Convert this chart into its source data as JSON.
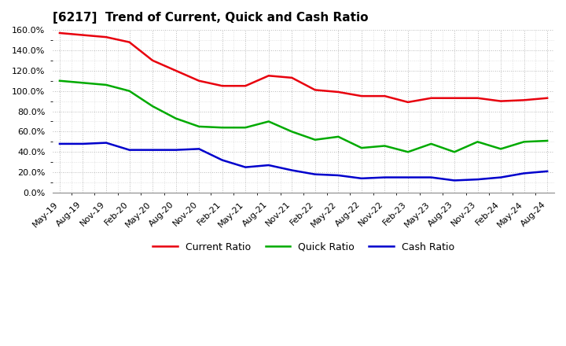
{
  "title": "[6217]  Trend of Current, Quick and Cash Ratio",
  "labels": [
    "May-19",
    "Aug-19",
    "Nov-19",
    "Feb-20",
    "May-20",
    "Aug-20",
    "Nov-20",
    "Feb-21",
    "May-21",
    "Aug-21",
    "Nov-21",
    "Feb-22",
    "May-22",
    "Aug-22",
    "Nov-22",
    "Feb-23",
    "May-23",
    "Aug-23",
    "Nov-23",
    "Feb-24",
    "May-24",
    "Aug-24"
  ],
  "current_ratio": [
    157,
    155,
    153,
    148,
    130,
    120,
    110,
    105,
    105,
    115,
    113,
    101,
    99,
    95,
    95,
    89,
    93,
    93,
    93,
    90,
    91,
    93
  ],
  "quick_ratio": [
    110,
    108,
    106,
    100,
    85,
    73,
    65,
    64,
    64,
    70,
    60,
    52,
    55,
    44,
    46,
    40,
    48,
    40,
    50,
    43,
    50,
    51
  ],
  "cash_ratio": [
    48,
    48,
    49,
    42,
    42,
    42,
    43,
    32,
    25,
    27,
    22,
    18,
    17,
    14,
    15,
    15,
    15,
    12,
    13,
    15,
    19,
    21
  ],
  "current_color": "#e8000d",
  "quick_color": "#00aa00",
  "cash_color": "#0000cc",
  "ylim": [
    0,
    160
  ],
  "yticks": [
    0,
    20,
    40,
    60,
    80,
    100,
    120,
    140,
    160
  ],
  "bg_color": "#ffffff",
  "plot_bg_color": "#ffffff",
  "grid_color": "#999999",
  "legend_labels": [
    "Current Ratio",
    "Quick Ratio",
    "Cash Ratio"
  ],
  "title_fontsize": 11,
  "tick_fontsize": 8,
  "legend_fontsize": 9
}
